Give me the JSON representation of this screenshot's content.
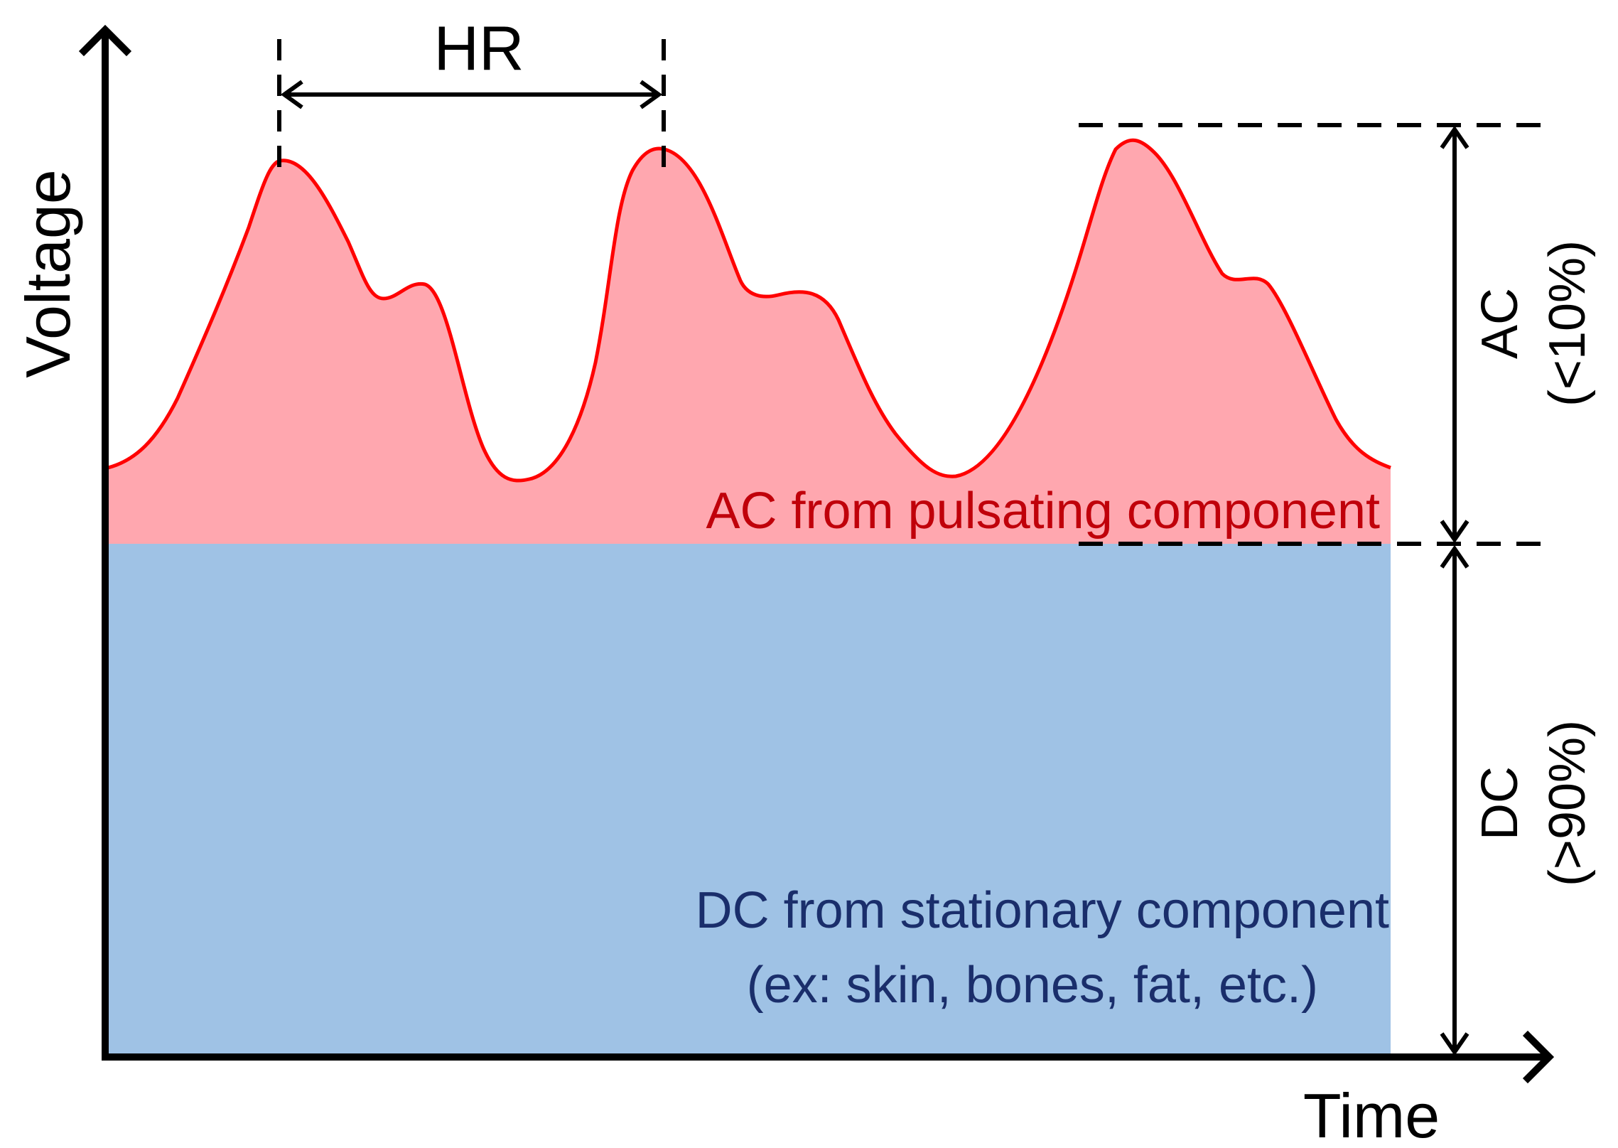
{
  "labels": {
    "y_axis": "Voltage",
    "x_axis": "Time",
    "hr": "HR",
    "ac_region": "AC from pulsating component",
    "dc_region_line1": "DC from stationary component",
    "dc_region_line2": "(ex: skin, bones, fat, etc.)",
    "ac_side": "AC",
    "ac_side_pct": "(<10%)",
    "dc_side": "DC",
    "dc_side_pct": "(>90%)"
  },
  "colors": {
    "axis": "#000000",
    "waveform": "#ff0000",
    "ac_fill": "#ffa7af",
    "dc_fill": "#9fc2e5",
    "ac_text": "#c0000a",
    "dc_text": "#1a2e6b",
    "text": "#000000"
  }
}
